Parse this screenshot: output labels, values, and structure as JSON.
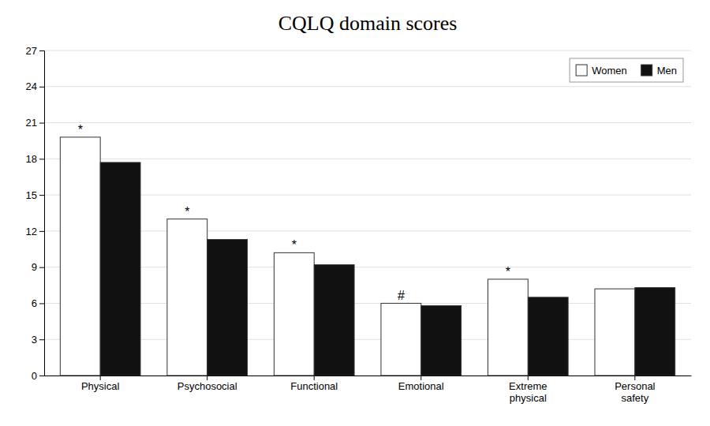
{
  "chart_data": {
    "type": "bar",
    "title": "CQLQ domain scores",
    "categories": [
      "Physical",
      "Psychosocial",
      "Functional",
      "Emotional",
      "Extreme\nphysical",
      "Personal\nsafety"
    ],
    "series": [
      {
        "name": "Women",
        "color": "#ffffff",
        "values": [
          19.8,
          13.0,
          10.2,
          6.0,
          8.0,
          7.2
        ]
      },
      {
        "name": "Men",
        "color": "#111111",
        "values": [
          17.7,
          11.3,
          9.2,
          5.8,
          6.5,
          7.3
        ]
      }
    ],
    "annotations": [
      {
        "text": "*",
        "category": "Physical",
        "series": "Women"
      },
      {
        "text": "*",
        "category": "Psychosocial",
        "series": "Women"
      },
      {
        "text": "*",
        "category": "Functional",
        "series": "Women"
      },
      {
        "text": "#",
        "category": "Emotional",
        "series": "Women"
      },
      {
        "text": "*",
        "category": "Extreme\nphysical",
        "series": "Women"
      }
    ],
    "ylim": [
      0,
      27
    ],
    "yticks": [
      0,
      3,
      6,
      9,
      12,
      15,
      18,
      21,
      24,
      27
    ],
    "grid": true,
    "legend": "top-right"
  }
}
